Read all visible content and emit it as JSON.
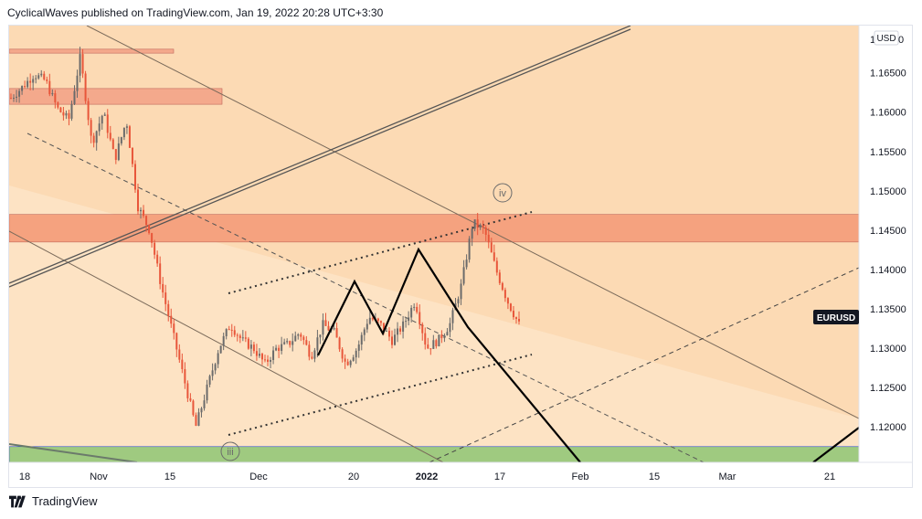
{
  "header": {
    "publisher": "CyclicalWaves",
    "published_text": "published on TradingView.com, Jan 19, 2022 20:28 UTC+3:30"
  },
  "footer": {
    "brand": "TradingView",
    "logo_icon": "tradingview-logo-icon"
  },
  "chart_data": {
    "type": "candlestick",
    "symbol": "EURUSD",
    "currency_label": "USD",
    "current_price_label": "EURUSD",
    "y_ticks": [
      {
        "value": 1.165,
        "label": "1.16500"
      },
      {
        "value": 1.16,
        "label": "1.16000"
      },
      {
        "value": 1.155,
        "label": "1.15500"
      },
      {
        "value": 1.15,
        "label": "1.15000"
      },
      {
        "value": 1.145,
        "label": "1.14500"
      },
      {
        "value": 1.14,
        "label": "1.14000"
      },
      {
        "value": 1.135,
        "label": "1.13500"
      },
      {
        "value": 1.13,
        "label": "1.13000"
      },
      {
        "value": 1.125,
        "label": "1.12500"
      },
      {
        "value": 1.12,
        "label": "1.12000"
      }
    ],
    "top_partial_tick_label": "1",
    "top_partial_tick_suffix": "0",
    "ylim": [
      1.1155,
      1.171
    ],
    "x_ticks": [
      {
        "label": "18",
        "bold": false
      },
      {
        "label": "Nov",
        "bold": false
      },
      {
        "label": "15",
        "bold": false
      },
      {
        "label": "Dec",
        "bold": false
      },
      {
        "label": "20",
        "bold": false
      },
      {
        "label": "2022",
        "bold": true
      },
      {
        "label": "17",
        "bold": false
      },
      {
        "label": "Feb",
        "bold": false
      },
      {
        "label": "15",
        "bold": false
      },
      {
        "label": "Mar",
        "bold": false
      },
      {
        "label": "21",
        "bold": false
      }
    ],
    "wave_labels": [
      "iii",
      "iv"
    ],
    "zones": [
      {
        "name": "resistance-zone-top",
        "color": "#f4a98c",
        "y_low": 1.1675,
        "y_high": 1.168
      },
      {
        "name": "resistance-zone-upper",
        "color": "#f4a98c",
        "y_low": 1.161,
        "y_high": 1.163
      },
      {
        "name": "resistance-zone-main",
        "color": "#f5a27f",
        "y_low": 1.1435,
        "y_high": 1.147
      },
      {
        "name": "support-zone",
        "color": "#9fca80",
        "y_low": 1.1155,
        "y_high": 1.1175
      }
    ],
    "colors": {
      "background": "#fde3c4",
      "up_candle": "#6b6b6b",
      "down_candle": "#e8563a",
      "zigzag": "#000000"
    },
    "price_trace": [
      {
        "x": 0,
        "close": 1.1618
      },
      {
        "x": 2,
        "close": 1.1632
      },
      {
        "x": 4,
        "close": 1.1648
      },
      {
        "x": 6,
        "close": 1.164
      },
      {
        "x": 8,
        "close": 1.1605
      },
      {
        "x": 10,
        "close": 1.159
      },
      {
        "x": 12,
        "close": 1.167
      },
      {
        "x": 14,
        "close": 1.156
      },
      {
        "x": 16,
        "close": 1.16
      },
      {
        "x": 18,
        "close": 1.154
      },
      {
        "x": 20,
        "close": 1.159
      },
      {
        "x": 22,
        "close": 1.148
      },
      {
        "x": 24,
        "close": 1.145
      },
      {
        "x": 26,
        "close": 1.138
      },
      {
        "x": 28,
        "close": 1.132
      },
      {
        "x": 30,
        "close": 1.126
      },
      {
        "x": 32,
        "close": 1.12
      },
      {
        "x": 34,
        "close": 1.125
      },
      {
        "x": 36,
        "close": 1.13
      },
      {
        "x": 38,
        "close": 1.133
      },
      {
        "x": 40,
        "close": 1.131
      },
      {
        "x": 42,
        "close": 1.13
      },
      {
        "x": 44,
        "close": 1.128
      },
      {
        "x": 46,
        "close": 1.13
      },
      {
        "x": 48,
        "close": 1.1305
      },
      {
        "x": 50,
        "close": 1.132
      },
      {
        "x": 52,
        "close": 1.129
      },
      {
        "x": 54,
        "close": 1.133
      },
      {
        "x": 56,
        "close": 1.132
      },
      {
        "x": 58,
        "close": 1.128
      },
      {
        "x": 60,
        "close": 1.13
      },
      {
        "x": 62,
        "close": 1.134
      },
      {
        "x": 64,
        "close": 1.133
      },
      {
        "x": 66,
        "close": 1.131
      },
      {
        "x": 68,
        "close": 1.133
      },
      {
        "x": 70,
        "close": 1.136
      },
      {
        "x": 72,
        "close": 1.13
      },
      {
        "x": 74,
        "close": 1.131
      },
      {
        "x": 76,
        "close": 1.133
      },
      {
        "x": 78,
        "close": 1.138
      },
      {
        "x": 80,
        "close": 1.146
      },
      {
        "x": 82,
        "close": 1.145
      },
      {
        "x": 84,
        "close": 1.14
      },
      {
        "x": 86,
        "close": 1.136
      },
      {
        "x": 88,
        "close": 1.133
      }
    ]
  }
}
